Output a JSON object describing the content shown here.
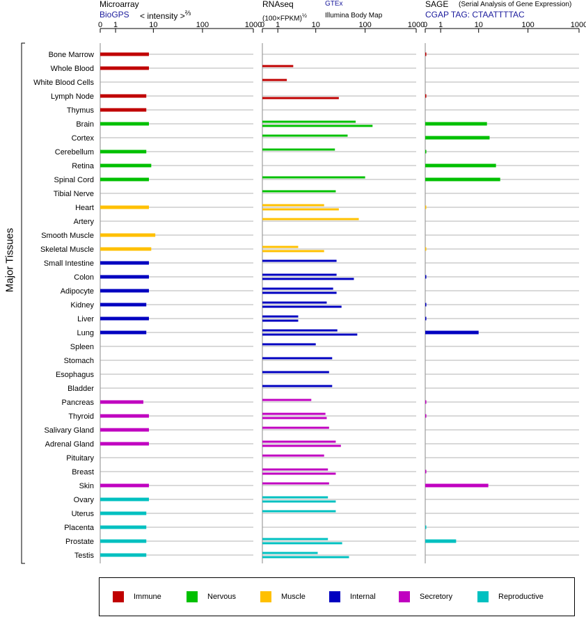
{
  "headers": {
    "microarray": {
      "title": "Microarray",
      "source": "BioGPS",
      "unit": "< intensity >",
      "unit_exp": "⅔"
    },
    "rnaseq": {
      "title": "RNAseq",
      "unit": "(100×FPKM)",
      "unit_exp": "½",
      "source1": "GTEx",
      "source2": "Illumina Body Map"
    },
    "sage": {
      "title": "SAGE",
      "subtitle": "(Serial Analysis of Gene Expression)",
      "tag": "CGAP TAG: CTAATTTTAC"
    }
  },
  "side_label": "Major Tissues",
  "legend": [
    {
      "label": "Immune",
      "color": "#c00000"
    },
    {
      "label": "Nervous",
      "color": "#00c000"
    },
    {
      "label": "Muscle",
      "color": "#ffc000"
    },
    {
      "label": "Internal",
      "color": "#0000c0"
    },
    {
      "label": "Secretory",
      "color": "#c000c0"
    },
    {
      "label": "Reproductive",
      "color": "#00c0c0"
    }
  ],
  "chart_data": {
    "type": "bar",
    "axis_ticks": [
      "0",
      "1",
      "10",
      "100",
      "1000"
    ],
    "categories": [
      "Bone Marrow",
      "Whole Blood",
      "White Blood Cells",
      "Lymph Node",
      "Thymus",
      "Brain",
      "Cortex",
      "Cerebellum",
      "Retina",
      "Spinal Cord",
      "Tibial Nerve",
      "Heart",
      "Artery",
      "Smooth Muscle",
      "Skeletal Muscle",
      "Small Intestine",
      "Colon",
      "Adipocyte",
      "Kidney",
      "Liver",
      "Lung",
      "Spleen",
      "Stomach",
      "Esophagus",
      "Bladder",
      "Pancreas",
      "Thyroid",
      "Salivary Gland",
      "Adrenal Gland",
      "Pituitary",
      "Breast",
      "Skin",
      "Ovary",
      "Uterus",
      "Placenta",
      "Prostate",
      "Testis"
    ],
    "groups": [
      "Immune",
      "Immune",
      "Immune",
      "Immune",
      "Immune",
      "Nervous",
      "Nervous",
      "Nervous",
      "Nervous",
      "Nervous",
      "Nervous",
      "Muscle",
      "Muscle",
      "Muscle",
      "Muscle",
      "Internal",
      "Internal",
      "Internal",
      "Internal",
      "Internal",
      "Internal",
      "Internal",
      "Internal",
      "Internal",
      "Internal",
      "Secretory",
      "Secretory",
      "Secretory",
      "Secretory",
      "Secretory",
      "Secretory",
      "Secretory",
      "Reproductive",
      "Reproductive",
      "Reproductive",
      "Reproductive",
      "Reproductive"
    ],
    "series": [
      {
        "name": "Microarray",
        "values": [
          8,
          8,
          null,
          7,
          7,
          8,
          null,
          7,
          9,
          8,
          null,
          8,
          null,
          11,
          9,
          8,
          8,
          8,
          7,
          8,
          7,
          null,
          null,
          null,
          null,
          6,
          8,
          8,
          8,
          null,
          null,
          8,
          8,
          7,
          7,
          7,
          7
        ]
      },
      {
        "name": "GTEx",
        "values": [
          null,
          3,
          2,
          null,
          null,
          65,
          45,
          25,
          null,
          100,
          26,
          15,
          75,
          null,
          4,
          27,
          27,
          23,
          17,
          4,
          28,
          10,
          22,
          19,
          22,
          8,
          16,
          19,
          26,
          15,
          18,
          19,
          18,
          26,
          null,
          18,
          11
        ]
      },
      {
        "name": "Illumina Body Map",
        "values": [
          null,
          null,
          null,
          30,
          null,
          140,
          null,
          null,
          null,
          null,
          null,
          30,
          null,
          null,
          15,
          null,
          60,
          27,
          34,
          4,
          70,
          null,
          null,
          null,
          null,
          null,
          17,
          null,
          33,
          null,
          26,
          null,
          26,
          null,
          null,
          35,
          48
        ]
      },
      {
        "name": "SAGE",
        "values": [
          0.05,
          null,
          null,
          0.05,
          null,
          15,
          17,
          0.05,
          23,
          28,
          null,
          0.02,
          null,
          null,
          0.02,
          null,
          0.05,
          null,
          0.05,
          0.05,
          10,
          null,
          null,
          null,
          null,
          0.05,
          0.05,
          null,
          null,
          null,
          0.05,
          16,
          null,
          null,
          0.05,
          3,
          null
        ]
      }
    ]
  }
}
